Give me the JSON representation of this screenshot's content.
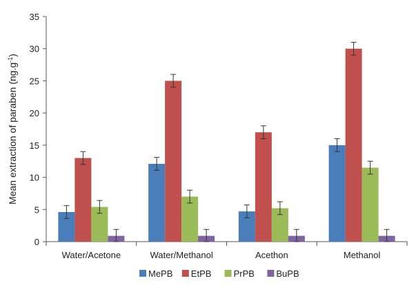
{
  "chart_data": {
    "type": "bar",
    "title": "",
    "xlabel": "",
    "ylabel": "Mean extraction of paraben (ng.g",
    "ylabel_sup": "-1",
    "ylabel_end": ")",
    "ylim": [
      0,
      35
    ],
    "yticks": [
      0,
      5,
      10,
      15,
      20,
      25,
      30,
      35
    ],
    "grid": false,
    "legend_position": "bottom",
    "categories": [
      "Water/Acetone",
      "Water/Methanol",
      "Acethon",
      "Methanol"
    ],
    "series": [
      {
        "name": "MePB",
        "color": "#4a7ebb",
        "values": [
          4.6,
          12.1,
          4.7,
          15.0
        ],
        "errors": [
          1.0,
          1.0,
          1.0,
          1.0
        ]
      },
      {
        "name": "EtPB",
        "color": "#c0504d",
        "values": [
          13.0,
          25.0,
          17.0,
          30.0
        ],
        "errors": [
          1.0,
          1.0,
          1.0,
          1.0
        ]
      },
      {
        "name": "PrPB",
        "color": "#9bbb59",
        "values": [
          5.4,
          7.0,
          5.2,
          11.5
        ],
        "errors": [
          1.0,
          1.0,
          1.0,
          1.0
        ]
      },
      {
        "name": "BuPB",
        "color": "#8064a2",
        "values": [
          0.9,
          0.9,
          0.9,
          0.9
        ],
        "errors": [
          1.0,
          1.0,
          1.0,
          1.0
        ]
      }
    ]
  }
}
